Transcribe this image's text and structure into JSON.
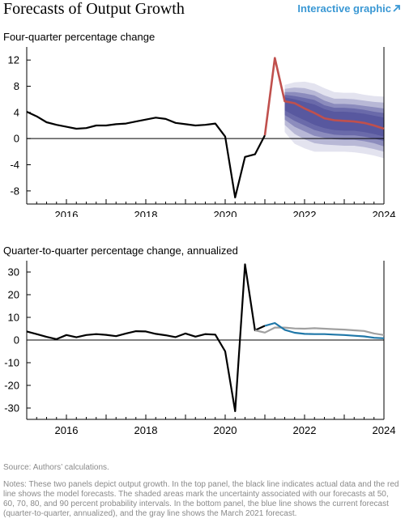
{
  "header": {
    "title": "Forecasts of Output Growth",
    "link_label": "Interactive graphic",
    "link_icon": "arrow-up-right-icon"
  },
  "colors": {
    "actual": "#000000",
    "forecast": "#c0504d",
    "fan_base": "#4f4f9a",
    "current_q2q": "#1f77a8",
    "march_q2q": "#a0a0a0",
    "link": "#3a98d4"
  },
  "chart_data": [
    {
      "type": "line",
      "subtitle": "Four-quarter percentage change",
      "xlim": [
        2015.0,
        2024.0
      ],
      "ylim": [
        -10,
        14
      ],
      "yticks": [
        -8,
        -4,
        0,
        4,
        8,
        12
      ],
      "ytick_labels": [
        "-8",
        "-4",
        "0",
        "4",
        "8",
        "12"
      ],
      "xticks": [
        2016,
        2018,
        2020,
        2022,
        2024
      ],
      "xtick_labels": [
        "2016",
        "2018",
        "2020",
        "2022",
        "2024"
      ],
      "zero_line": true,
      "series": [
        {
          "role": "actual",
          "x": [
            2015.0,
            2015.25,
            2015.5,
            2015.75,
            2016.0,
            2016.25,
            2016.5,
            2016.75,
            2017.0,
            2017.25,
            2017.5,
            2017.75,
            2018.0,
            2018.25,
            2018.5,
            2018.75,
            2019.0,
            2019.25,
            2019.5,
            2019.75,
            2020.0,
            2020.25,
            2020.5,
            2020.75,
            2021.0
          ],
          "y": [
            4.1,
            3.4,
            2.5,
            2.1,
            1.8,
            1.5,
            1.6,
            2.0,
            2.0,
            2.2,
            2.3,
            2.6,
            2.9,
            3.2,
            3.0,
            2.4,
            2.2,
            2.0,
            2.1,
            2.3,
            0.3,
            -9.0,
            -2.8,
            -2.4,
            0.5
          ]
        },
        {
          "role": "forecast",
          "x": [
            2021.0,
            2021.25,
            2021.5,
            2021.75,
            2022.0,
            2022.25,
            2022.5,
            2022.75,
            2023.0,
            2023.25,
            2023.5,
            2023.75,
            2024.0
          ],
          "y": [
            0.5,
            12.3,
            5.7,
            5.4,
            4.6,
            3.9,
            3.1,
            2.8,
            2.7,
            2.6,
            2.4,
            2.0,
            1.5
          ]
        }
      ],
      "fan": {
        "x": [
          2021.5,
          2021.75,
          2022.0,
          2022.25,
          2022.5,
          2022.75,
          2023.0,
          2023.25,
          2023.5,
          2023.75,
          2024.0
        ],
        "intervals": [
          {
            "percent": 90,
            "lower": [
              1.0,
              -0.8,
              -1.5,
              -2.0,
              -2.0,
              -2.0,
              -2.0,
              -2.1,
              -2.3,
              -2.6,
              -3.0
            ],
            "upper": [
              8.2,
              8.6,
              8.7,
              8.4,
              7.7,
              7.1,
              7.0,
              7.0,
              6.7,
              6.5,
              6.4
            ]
          },
          {
            "percent": 80,
            "lower": [
              2.1,
              0.7,
              -0.1,
              -0.7,
              -0.9,
              -1.0,
              -1.1,
              -1.1,
              -1.3,
              -1.6,
              -2.0
            ],
            "upper": [
              7.6,
              7.8,
              7.7,
              7.3,
              6.6,
              6.1,
              6.1,
              6.0,
              5.8,
              5.6,
              5.5
            ]
          },
          {
            "percent": 70,
            "lower": [
              2.9,
              1.8,
              1.1,
              0.4,
              0.1,
              -0.1,
              -0.2,
              -0.2,
              -0.4,
              -0.7,
              -1.2
            ],
            "upper": [
              7.1,
              7.1,
              6.9,
              6.6,
              5.8,
              5.3,
              5.3,
              5.2,
              5.0,
              4.8,
              4.6
            ]
          },
          {
            "percent": 60,
            "lower": [
              3.6,
              2.7,
              2.0,
              1.3,
              0.9,
              0.6,
              0.5,
              0.5,
              0.3,
              0.0,
              -0.4
            ],
            "upper": [
              6.7,
              6.5,
              6.2,
              5.9,
              5.1,
              4.7,
              4.7,
              4.6,
              4.4,
              4.1,
              3.9
            ]
          },
          {
            "percent": 50,
            "lower": [
              4.3,
              3.5,
              2.8,
              2.1,
              1.6,
              1.3,
              1.2,
              1.2,
              1.0,
              0.7,
              0.3
            ],
            "upper": [
              6.3,
              6.0,
              5.6,
              5.2,
              4.5,
              4.1,
              4.1,
              4.0,
              3.8,
              3.5,
              3.2
            ]
          }
        ]
      }
    },
    {
      "type": "line",
      "subtitle": "Quarter-to-quarter percentage change, annualized",
      "xlim": [
        2015.0,
        2024.0
      ],
      "ylim": [
        -35,
        35
      ],
      "yticks": [
        -30,
        -20,
        -10,
        0,
        10,
        20,
        30
      ],
      "ytick_labels": [
        "-30",
        "-20",
        "-10",
        "0",
        "10",
        "20",
        "30"
      ],
      "xticks": [
        2016,
        2018,
        2020,
        2022,
        2024
      ],
      "xtick_labels": [
        "2016",
        "2018",
        "2020",
        "2022",
        "2024"
      ],
      "zero_line": true,
      "series": [
        {
          "role": "actual",
          "x": [
            2015.0,
            2015.25,
            2015.5,
            2015.75,
            2016.0,
            2016.25,
            2016.5,
            2016.75,
            2017.0,
            2017.25,
            2017.5,
            2017.75,
            2018.0,
            2018.25,
            2018.5,
            2018.75,
            2019.0,
            2019.25,
            2019.5,
            2019.75,
            2020.0,
            2020.25,
            2020.5,
            2020.75,
            2021.0
          ],
          "y": [
            3.8,
            2.6,
            1.4,
            0.4,
            2.2,
            1.2,
            2.2,
            2.6,
            2.3,
            1.7,
            2.9,
            3.9,
            3.8,
            2.7,
            2.1,
            1.3,
            2.9,
            1.5,
            2.6,
            2.4,
            -5.0,
            -31.4,
            33.4,
            4.3,
            6.3
          ]
        },
        {
          "role": "march_forecast",
          "x": [
            2020.75,
            2021.0,
            2021.25,
            2021.5,
            2021.75,
            2022.0,
            2022.25,
            2022.5,
            2022.75,
            2023.0,
            2023.25,
            2023.5,
            2023.75,
            2024.0
          ],
          "y": [
            4.3,
            3.3,
            5.5,
            5.5,
            5.1,
            5.0,
            5.2,
            5.0,
            4.8,
            4.6,
            4.3,
            4.0,
            2.9,
            2.2
          ]
        },
        {
          "role": "current_forecast",
          "x": [
            2021.0,
            2021.25,
            2021.5,
            2021.75,
            2022.0,
            2022.25,
            2022.5,
            2022.75,
            2023.0,
            2023.25,
            2023.5,
            2023.75,
            2024.0
          ],
          "y": [
            6.3,
            7.5,
            4.5,
            3.2,
            2.7,
            2.6,
            2.6,
            2.4,
            2.2,
            1.9,
            1.6,
            1.0,
            0.8
          ]
        }
      ]
    }
  ],
  "source": "Source: Authors’ calculations.",
  "notes": "Notes: These two panels depict output growth. In the top panel, the black line indicates actual data and the red line shows the model forecasts. The shaded areas mark the uncertainty associated with our forecasts at 50, 60, 70, 80, and 90 percent probability intervals. In the bottom panel, the blue line shows the current forecast (quarter-to-quarter, annualized), and the gray line shows the March 2021 forecast."
}
